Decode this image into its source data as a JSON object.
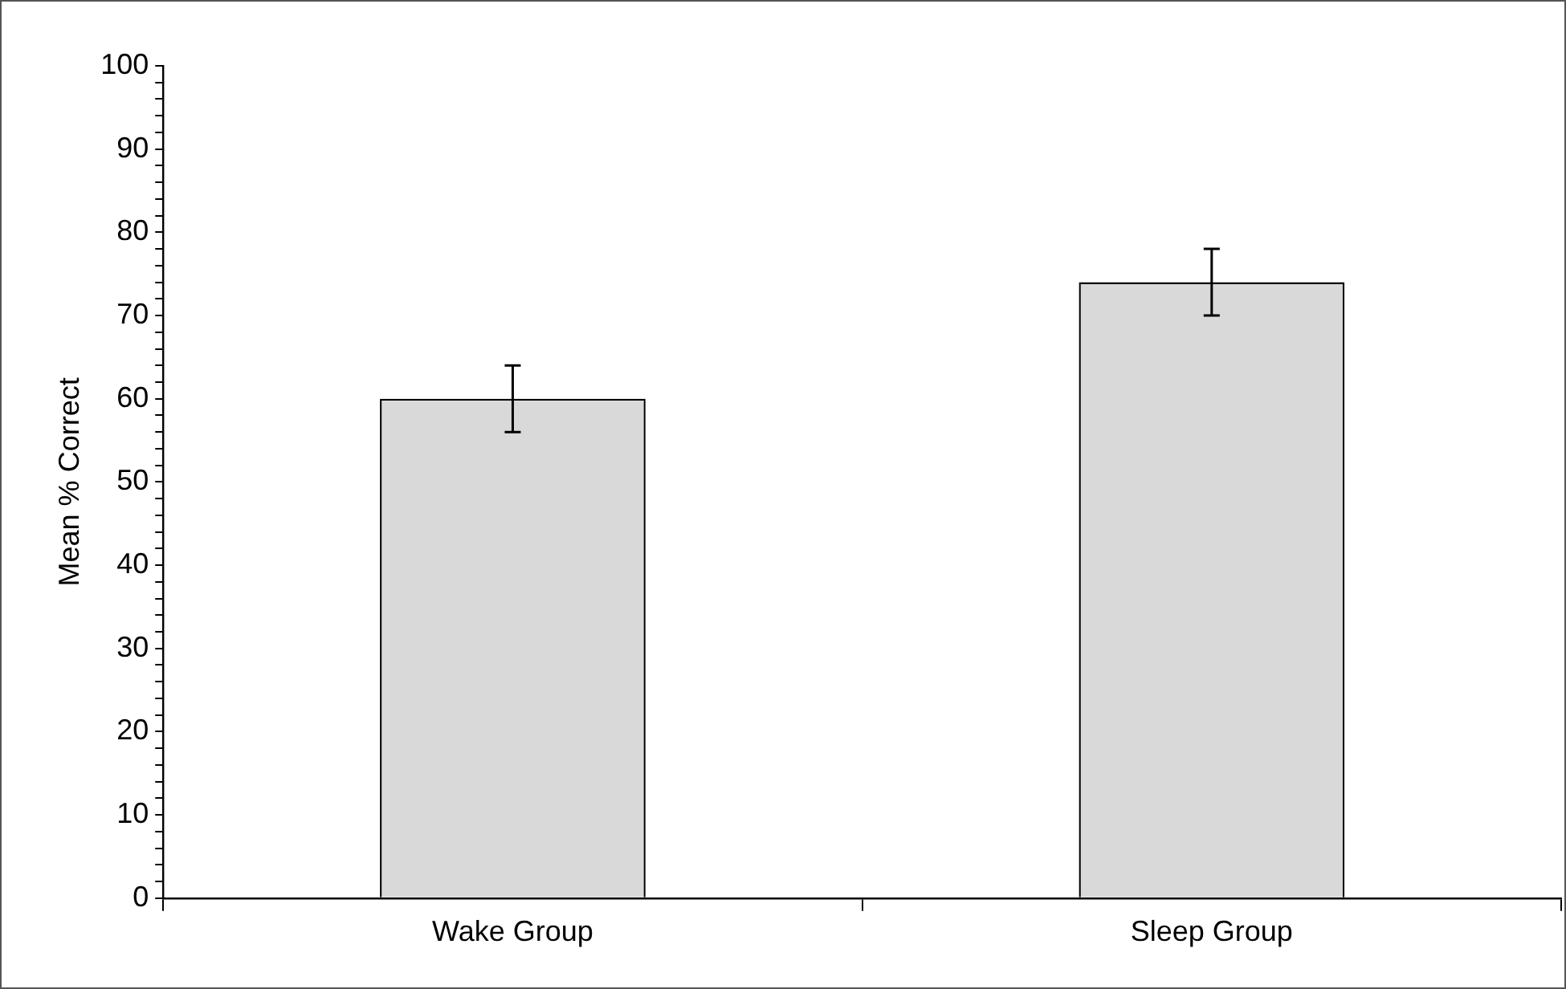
{
  "chart_data": {
    "type": "bar",
    "ylabel": "Mean % Correct",
    "categories": [
      "Wake Group",
      "Sleep Group"
    ],
    "values": [
      60,
      74
    ],
    "errors": [
      4,
      4
    ],
    "color": "#d9d9d9",
    "ylim": [
      0,
      100
    ],
    "yticks": [
      0,
      {
        "value": 2,
        "label": null
      },
      {
        "value": 4,
        "label": null
      },
      {
        "value": 6,
        "label": null
      },
      {
        "value": 8,
        "label": null
      },
      10,
      {
        "value": 12,
        "label": null
      },
      {
        "value": 14,
        "label": null
      },
      {
        "value": 16,
        "label": null
      },
      {
        "value": 18,
        "label": null
      },
      20,
      {
        "value": 22,
        "label": null
      },
      {
        "value": 24,
        "label": null
      },
      {
        "value": 26,
        "label": null
      },
      {
        "value": 28,
        "label": null
      },
      30,
      {
        "value": 32,
        "label": null
      },
      {
        "value": 34,
        "label": null
      },
      {
        "value": 36,
        "label": null
      },
      {
        "value": 38,
        "label": null
      },
      40,
      {
        "value": 42,
        "label": null
      },
      {
        "value": 44,
        "label": null
      },
      {
        "value": 46,
        "label": null
      },
      {
        "value": 48,
        "label": null
      },
      50,
      {
        "value": 52,
        "label": null
      },
      {
        "value": 54,
        "label": null
      },
      {
        "value": 56,
        "label": null
      },
      {
        "value": 58,
        "label": null
      },
      60,
      {
        "value": 62,
        "label": null
      },
      {
        "value": 64,
        "label": null
      },
      {
        "value": 66,
        "label": null
      },
      {
        "value": 68,
        "label": null
      },
      70,
      {
        "value": 72,
        "label": null
      },
      {
        "value": 74,
        "label": null
      },
      {
        "value": 76,
        "label": null
      },
      {
        "value": 78,
        "label": null
      },
      80,
      {
        "value": 82,
        "label": null
      },
      {
        "value": 84,
        "label": null
      },
      {
        "value": 86,
        "label": null
      },
      {
        "value": 88,
        "label": null
      },
      90,
      {
        "value": 92,
        "label": null
      },
      {
        "value": 94,
        "label": null
      },
      {
        "value": 96,
        "label": null
      },
      {
        "value": 98,
        "label": null
      },
      100
    ],
    "grid": false,
    "legend": false
  }
}
